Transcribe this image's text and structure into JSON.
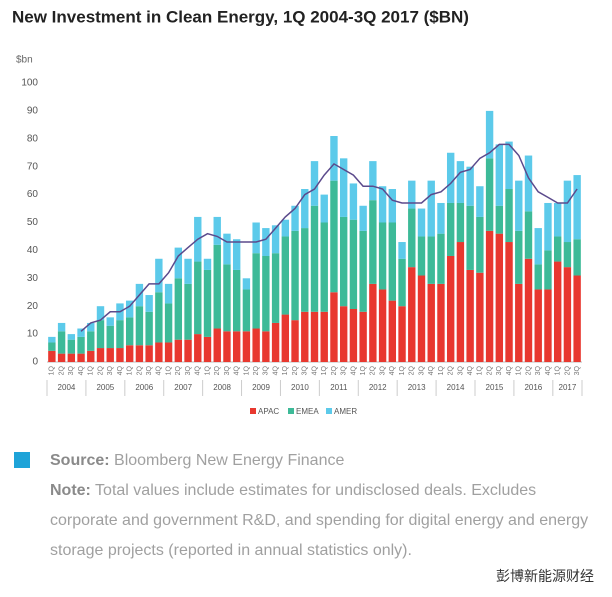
{
  "chart_data": {
    "type": "stacked-bar-line",
    "title": "New Investment in Clean Energy, 1Q 2004-3Q 2017 ($BN)",
    "y_label": "$bn",
    "categories": [
      "1Q",
      "2Q",
      "3Q",
      "4Q",
      "1Q",
      "2Q",
      "3Q",
      "4Q",
      "1Q",
      "2Q",
      "3Q",
      "4Q",
      "1Q",
      "2Q",
      "3Q",
      "4Q",
      "1Q",
      "2Q",
      "3Q",
      "4Q",
      "1Q",
      "2Q",
      "3Q",
      "4Q",
      "1Q",
      "2Q",
      "3Q",
      "4Q",
      "1Q",
      "2Q",
      "3Q",
      "4Q",
      "1Q",
      "2Q",
      "3Q",
      "4Q",
      "1Q",
      "2Q",
      "3Q",
      "4Q",
      "1Q",
      "2Q",
      "3Q",
      "4Q",
      "1Q",
      "2Q",
      "3Q",
      "4Q",
      "1Q",
      "2Q",
      "3Q",
      "4Q",
      "1Q",
      "2Q",
      "3Q"
    ],
    "years": [
      "2004",
      "2005",
      "2006",
      "2007",
      "2008",
      "2009",
      "2010",
      "2011",
      "2012",
      "2013",
      "2014",
      "2015",
      "2016",
      "2017"
    ],
    "series": [
      {
        "name": "APAC",
        "color": "#e8382f",
        "values": [
          4,
          3,
          3,
          3,
          4,
          5,
          5,
          5,
          6,
          6,
          6,
          7,
          7,
          8,
          8,
          10,
          9,
          12,
          11,
          11,
          11,
          12,
          11,
          14,
          17,
          15,
          18,
          18,
          18,
          25,
          20,
          19,
          18,
          28,
          26,
          22,
          20,
          34,
          31,
          28,
          28,
          38,
          43,
          33,
          32,
          47,
          46,
          43,
          28,
          37,
          26,
          26,
          36,
          34,
          31
        ]
      },
      {
        "name": "EMEA",
        "color": "#3dba98",
        "values": [
          3,
          8,
          5,
          6,
          7,
          10,
          8,
          10,
          10,
          14,
          12,
          18,
          14,
          22,
          20,
          26,
          24,
          30,
          24,
          22,
          15,
          27,
          27,
          25,
          28,
          32,
          30,
          38,
          32,
          40,
          32,
          32,
          29,
          30,
          24,
          28,
          17,
          21,
          14,
          17,
          18,
          19,
          14,
          23,
          20,
          26,
          10,
          19,
          19,
          17,
          9,
          14,
          9,
          9,
          13
        ]
      },
      {
        "name": "AMER",
        "color": "#5ccaea",
        "values": [
          2,
          3,
          2,
          3,
          3,
          5,
          3,
          6,
          6,
          8,
          6,
          12,
          7,
          11,
          9,
          16,
          4,
          10,
          11,
          11,
          4,
          11,
          10,
          10,
          6,
          9,
          14,
          16,
          10,
          16,
          21,
          13,
          9,
          14,
          13,
          12,
          6,
          10,
          10,
          20,
          11,
          18,
          15,
          14,
          11,
          17,
          22,
          17,
          18,
          20,
          13,
          17,
          12,
          22,
          23
        ]
      }
    ],
    "line": {
      "color": "#5b4a8c",
      "values": [
        null,
        null,
        null,
        11,
        14,
        15,
        18,
        18,
        20,
        24,
        28,
        28,
        32,
        38,
        41,
        44,
        46,
        45,
        43,
        43,
        43,
        43,
        44,
        48,
        52,
        55,
        60,
        62,
        67,
        71,
        69,
        67,
        63,
        63,
        62,
        58,
        57,
        57,
        57,
        60,
        61,
        64,
        68,
        69,
        73,
        75,
        78,
        78,
        74,
        66,
        61,
        59,
        57,
        57,
        62
      ]
    },
    "ylim": [
      0,
      100
    ],
    "yticks": [
      0,
      10,
      20,
      30,
      40,
      50,
      60,
      70,
      80,
      90,
      100
    ],
    "grid": false
  },
  "footer": {
    "source_label": "Source:",
    "source_text": "Bloomberg New Energy Finance",
    "note_label": "Note:",
    "note_text": "Total values include estimates for undisclosed deals. Excludes corporate and government R&D, and spending for digital energy and energy storage projects (reported in annual statistics only)."
  },
  "watermark": "彭博新能源财经"
}
